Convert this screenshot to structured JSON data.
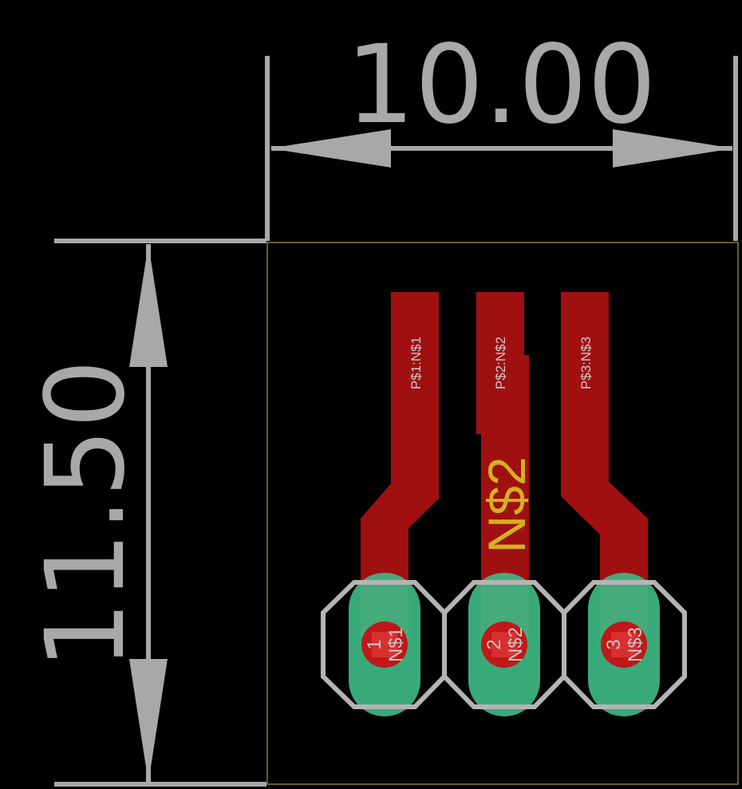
{
  "dimensions": {
    "width_label": "10.00",
    "height_label": "11.50"
  },
  "net_label": "N$2",
  "pads": [
    {
      "number": "1",
      "net": "N$1"
    },
    {
      "number": "2",
      "net": "N$2"
    },
    {
      "number": "3",
      "net": "N$3"
    }
  ],
  "traces": [
    {
      "label": "P$1:N$1"
    },
    {
      "label": "P$2:N$2"
    },
    {
      "label": "P$3:N$3"
    }
  ],
  "colors": {
    "background": "#000000",
    "dimension": "#A8A8A8",
    "board_outline": "#8A7A3A",
    "copper": "#A01010",
    "pad": "#3DB884",
    "drill": "#C01818",
    "silkscreen": "#B4B4B4",
    "net_label": "#D4B020"
  }
}
